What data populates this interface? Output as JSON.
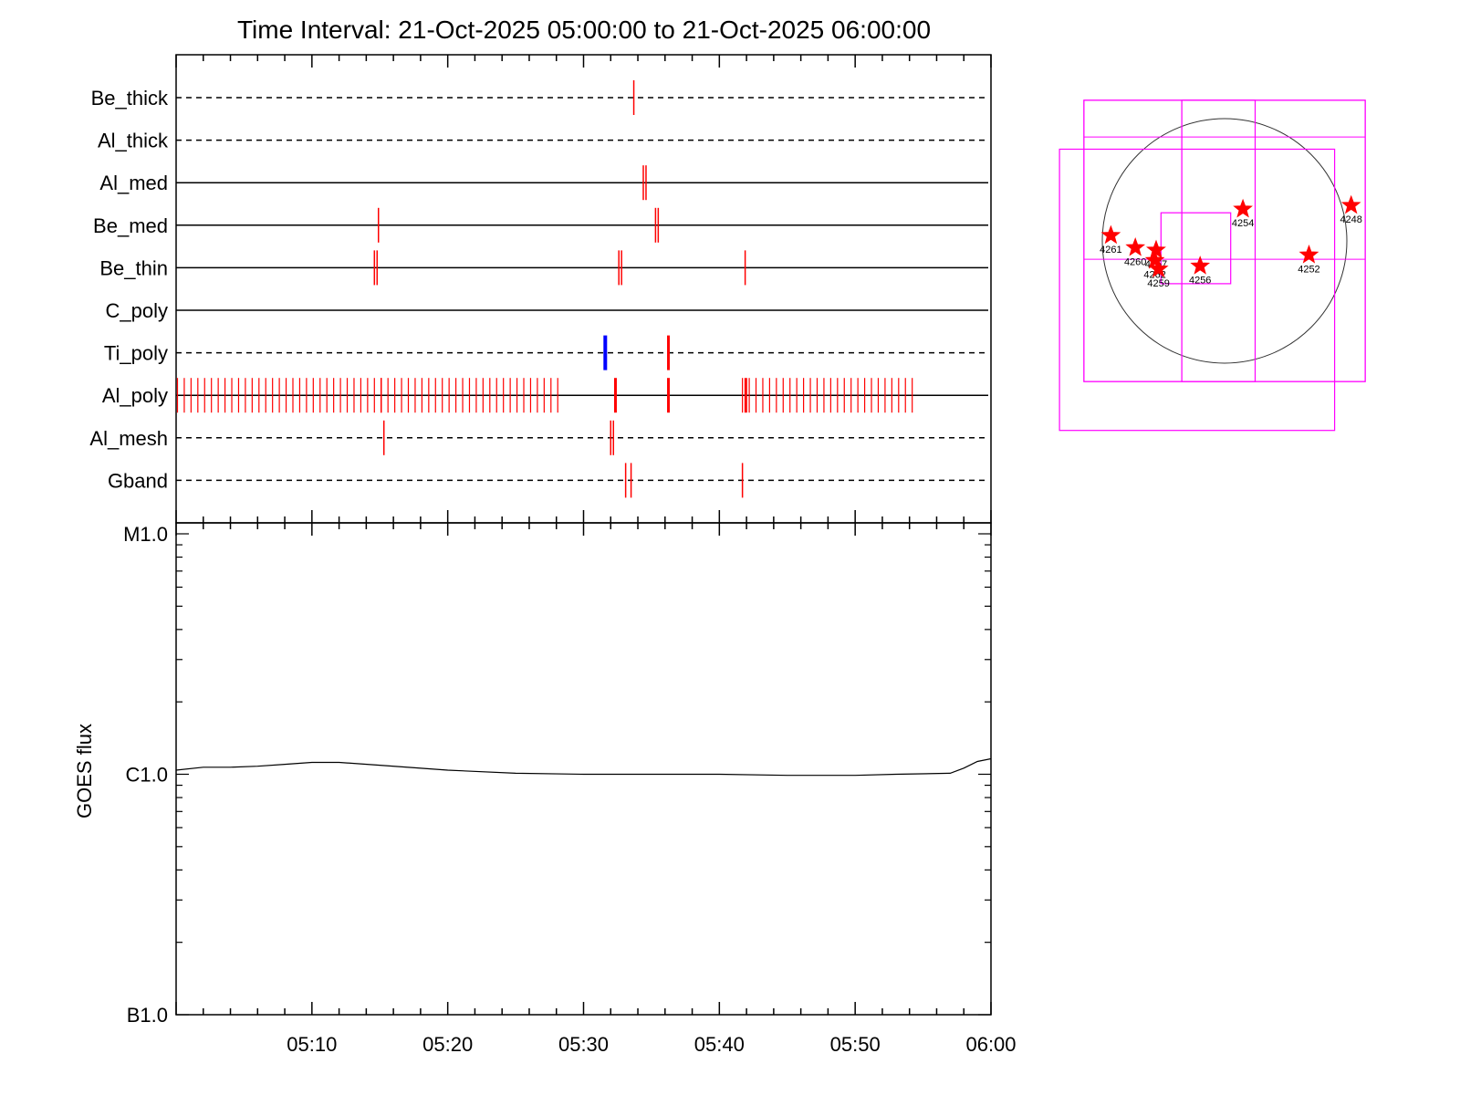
{
  "title": "Time Interval: 21-Oct-2025 05:00:00 to 21-Oct-2025 06:00:00",
  "colors": {
    "axis": "#000000",
    "red_mark": "#ff0000",
    "blue_mark": "#0000ff",
    "fov_box": "#ff00ff",
    "star": "#ff0000",
    "disk": "#333333"
  },
  "chart_data": [
    {
      "type": "timeline",
      "x_range_min": [
        0,
        60
      ],
      "x_major_ticks_min": [
        0,
        10,
        20,
        30,
        40,
        50,
        60
      ],
      "x_minor_step_min": 2,
      "rows": [
        {
          "label": "Be_thick",
          "line": "dashed",
          "marks": [
            {
              "t": 33.7
            }
          ]
        },
        {
          "label": "Al_thick",
          "line": "dashed",
          "marks": []
        },
        {
          "label": "Al_med",
          "line": "solid",
          "marks": [
            {
              "t": 34.4
            },
            {
              "t": 34.6
            }
          ]
        },
        {
          "label": "Be_med",
          "line": "solid",
          "marks": [
            {
              "t": 14.9
            },
            {
              "t": 35.3
            },
            {
              "t": 35.5
            }
          ]
        },
        {
          "label": "Be_thin",
          "line": "solid",
          "marks": [
            {
              "t": 14.6
            },
            {
              "t": 14.8
            },
            {
              "t": 32.6
            },
            {
              "t": 32.8
            },
            {
              "t": 41.9
            }
          ]
        },
        {
          "label": "C_poly",
          "line": "solid",
          "marks": []
        },
        {
          "label": "Ti_poly",
          "line": "dashed",
          "marks": [
            {
              "t": 31.6,
              "color": "blue"
            },
            {
              "t": 36.2
            },
            {
              "t": 36.3
            }
          ]
        },
        {
          "label": "Al_poly",
          "line": "solid",
          "regular_blocks": [
            {
              "start": 0.1,
              "end": 28.2,
              "step": 0.5
            },
            {
              "start": 41.7,
              "end": 54.2,
              "step": 0.5
            }
          ],
          "marks": [
            {
              "t": 15.1
            },
            {
              "t": 32.3
            },
            {
              "t": 32.4
            },
            {
              "t": 36.2
            },
            {
              "t": 36.3
            },
            {
              "t": 41.9
            },
            {
              "t": 42.0
            }
          ]
        },
        {
          "label": "Al_mesh",
          "line": "dashed",
          "marks": [
            {
              "t": 15.3
            },
            {
              "t": 32.0
            },
            {
              "t": 32.2
            }
          ]
        },
        {
          "label": "Gband",
          "line": "dashed",
          "marks": [
            {
              "t": 33.1
            },
            {
              "t": 33.5
            },
            {
              "t": 41.7
            }
          ]
        }
      ]
    },
    {
      "type": "line",
      "ylabel": "GOES flux",
      "y_scale": "log",
      "ylim": [
        1e-07,
        1e-05
      ],
      "y_tick_labels": [
        {
          "v": 1e-05,
          "label": "M1.0"
        },
        {
          "v": 1e-06,
          "label": "C1.0"
        },
        {
          "v": 1e-07,
          "label": "B1.0"
        }
      ],
      "x_tick_labels": [
        {
          "t": 10,
          "label": "05:10"
        },
        {
          "t": 20,
          "label": "05:20"
        },
        {
          "t": 30,
          "label": "05:30"
        },
        {
          "t": 40,
          "label": "05:40"
        },
        {
          "t": 50,
          "label": "05:50"
        },
        {
          "t": 60,
          "label": "06:00"
        }
      ],
      "series": [
        {
          "x": [
            0,
            2,
            4,
            6,
            8,
            10,
            12,
            15,
            20,
            25,
            30,
            35,
            40,
            45,
            47,
            50,
            53,
            57,
            58,
            59,
            60
          ],
          "y": [
            1.04e-06,
            1.07e-06,
            1.07e-06,
            1.08e-06,
            1.1e-06,
            1.12e-06,
            1.12e-06,
            1.09e-06,
            1.04e-06,
            1.01e-06,
            1e-06,
            1e-06,
            1e-06,
            9.9e-07,
            9.9e-07,
            9.9e-07,
            1e-06,
            1.01e-06,
            1.06e-06,
            1.13e-06,
            1.16e-06
          ]
        }
      ]
    },
    {
      "type": "scatter",
      "description_ref": "solar disk map (arcsec)",
      "sun_radius": 1000,
      "fov_boxes": [
        {
          "x0": -1150,
          "y0": -1150,
          "x0_end": 1150,
          "y1": 1150
        },
        {
          "x0": -1150,
          "y0": -1150,
          "x0_end": 1150,
          "y1": 1150
        },
        {
          "x0": -1350,
          "y0": -1550,
          "x0_end": 900,
          "y1": 750
        },
        {
          "x0": -520,
          "y0": -350,
          "x0_end": 50,
          "y1": 230
        },
        {
          "x0": -350,
          "y0": -1150,
          "x0_end": 250,
          "y1": 1150
        }
      ],
      "fov_grid_x": [
        -350,
        250
      ],
      "fov_grid_y": [
        -150,
        850
      ],
      "regions": [
        {
          "id": "4261",
          "x": -930,
          "y": 45
        },
        {
          "id": "4260",
          "x": -730,
          "y": -55
        },
        {
          "id": "4257",
          "x": -560,
          "y": -75
        },
        {
          "id": "4262",
          "x": -570,
          "y": -160
        },
        {
          "id": "4259",
          "x": -540,
          "y": -230
        },
        {
          "id": "4256",
          "x": -200,
          "y": -205
        },
        {
          "id": "4254",
          "x": 150,
          "y": 260
        },
        {
          "id": "4252",
          "x": 690,
          "y": -115
        },
        {
          "id": "4248",
          "x": 1035,
          "y": 290
        }
      ]
    }
  ]
}
